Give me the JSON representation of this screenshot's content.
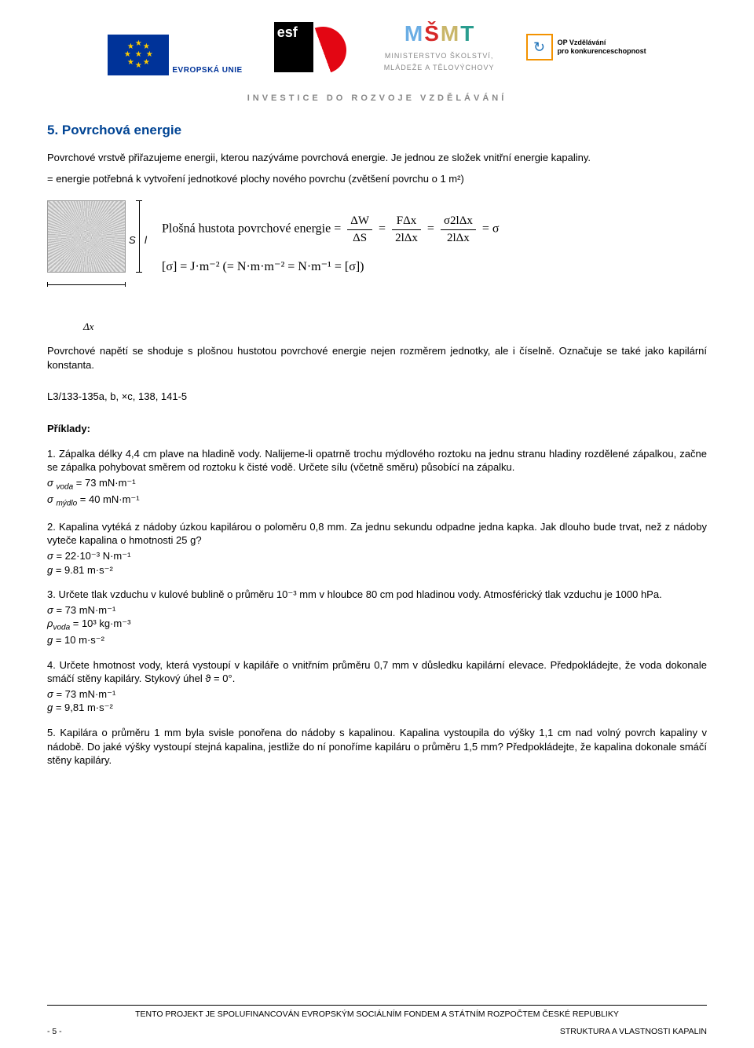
{
  "header": {
    "eu_label": "EVROPSKÁ UNIE",
    "esf_initials": "esf",
    "msmt_line1": "MINISTERSTVO ŠKOLSTVÍ,",
    "msmt_line2": "MLÁDEŽE A TĚLOVÝCHOVY",
    "op_line1": "OP Vzdělávání",
    "op_line2": "pro konkurenceschopnost",
    "investice": "INVESTICE DO ROZVOJE VZDĚLÁVÁNÍ"
  },
  "section": {
    "title": "5. Povrchová energie",
    "intro": "Povrchové vrstvě přiřazujeme energii, kterou nazýváme povrchová energie. Je jednou ze složek vnitřní energie kapaliny.",
    "definition": "= energie potřebná k vytvoření jednotkové plochy nového povrchu (zvětšení povrchu o 1 m²)"
  },
  "diagram": {
    "label_S": "S",
    "label_l": "l",
    "label_dx": "Δx"
  },
  "equations": {
    "line1_prefix": "Plošná hustota povrchové energie =",
    "f1_num": "ΔW",
    "f1_den": "ΔS",
    "f2_num": "FΔx",
    "f2_den": "2lΔx",
    "f3_num": "σ2lΔx",
    "f3_den": "2lΔx",
    "line1_suffix": "= σ",
    "line2": "[σ] = J·m⁻² (= N·m·m⁻² = N·m⁻¹ = [σ])"
  },
  "below_eq": "Povrchové napětí se shoduje s plošnou hustotou povrchové energie nejen rozměrem jednotky, ale i číselně. Označuje se také jako kapilární konstanta.",
  "refs": "L3/133-135a, b, ×c, 138, 141-5",
  "priklady_head": "Příklady:",
  "priklady": [
    {
      "text": "1. Zápalka délky 4,4 cm plave na hladině vody. Nalijeme-li opatrně trochu mýdlového roztoku na jednu stranu hladiny rozdělené zápalkou, začne se zápalka pohybovat směrem od roztoku k čisté vodě. Určete sílu (včetně směru) působící na zápalku.",
      "params": [
        "σ voda = 73 mN·m⁻¹",
        "σ mýdlo = 40 mN·m⁻¹"
      ]
    },
    {
      "text": "2. Kapalina vytéká z nádoby úzkou kapilárou o poloměru 0,8 mm. Za jednu sekundu odpadne jedna kapka. Jak dlouho bude trvat, než z nádoby vyteče kapalina o hmotnosti 25 g?",
      "params": [
        "σ = 22·10⁻³ N·m⁻¹",
        "g = 9.81 m·s⁻²"
      ]
    },
    {
      "text": "3. Určete tlak vzduchu v kulové bublině o průměru 10⁻³ mm v hloubce 80 cm pod hladinou vody. Atmosférický tlak vzduchu je 1000 hPa.",
      "params": [
        "σ = 73 mN·m⁻¹",
        "ρvoda = 10³ kg·m⁻³",
        "g = 10 m·s⁻²"
      ]
    },
    {
      "text": "4. Určete hmotnost vody, která vystoupí v kapiláře o vnitřním průměru 0,7 mm v důsledku kapilární elevace. Předpokládejte, že voda dokonale smáčí stěny kapiláry. Stykový úhel  ϑ = 0°.",
      "params": [
        "σ = 73 mN·m⁻¹",
        "g = 9,81 m·s⁻²"
      ]
    },
    {
      "text": "5. Kapilára o průměru 1 mm byla svisle ponořena do nádoby s kapalinou. Kapalina vystoupila do výšky 1,1 cm nad volný povrch kapaliny v nádobě. Do jaké výšky vystoupí stejná kapalina, jestliže do ní ponoříme kapiláru o průměru 1,5 mm? Předpokládejte, že kapalina dokonale smáčí stěny kapiláry.",
      "params": []
    }
  ],
  "footer": {
    "project": "TENTO PROJEKT JE SPOLUFINANCOVÁN EVROPSKÝM SOCIÁLNÍM FONDEM A STÁTNÍM ROZPOČTEM ČESKÉ REPUBLIKY",
    "page": "- 5 -",
    "right": "STRUKTURA A VLASTNOSTI KAPALIN"
  }
}
